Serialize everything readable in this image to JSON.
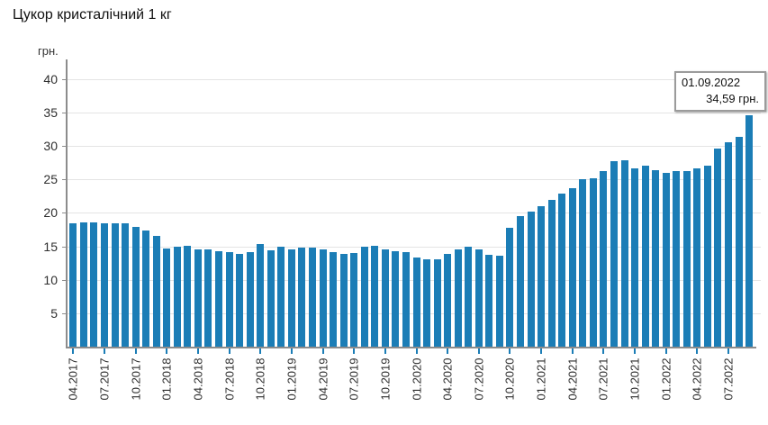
{
  "title": "Цукор кристалічний 1 кг",
  "y_axis_unit": "грн.",
  "tooltip": {
    "date": "01.09.2022",
    "value": "34,59 грн."
  },
  "chart_data": {
    "type": "bar",
    "title": "Цукор кристалічний 1 кг",
    "ylabel": "грн.",
    "xlabel": "",
    "grid": true,
    "legend_position": "none",
    "bar_color": "#1b7db6",
    "axis_color": "#8c8c8c",
    "grid_color": "#e4e4e4",
    "ylim": [
      0,
      42
    ],
    "yticks": [
      5,
      10,
      15,
      20,
      25,
      30,
      35,
      40
    ],
    "x_label_every": 3,
    "x": [
      "04.2017",
      "05.2017",
      "06.2017",
      "07.2017",
      "08.2017",
      "09.2017",
      "10.2017",
      "11.2017",
      "12.2017",
      "01.2018",
      "02.2018",
      "03.2018",
      "04.2018",
      "05.2018",
      "06.2018",
      "07.2018",
      "08.2018",
      "09.2018",
      "10.2018",
      "11.2018",
      "12.2018",
      "01.2019",
      "02.2019",
      "03.2019",
      "04.2019",
      "05.2019",
      "06.2019",
      "07.2019",
      "08.2019",
      "09.2019",
      "10.2019",
      "11.2019",
      "12.2019",
      "01.2020",
      "02.2020",
      "03.2020",
      "04.2020",
      "05.2020",
      "06.2020",
      "07.2020",
      "08.2020",
      "09.2020",
      "10.2020",
      "11.2020",
      "12.2020",
      "01.2021",
      "02.2021",
      "03.2021",
      "04.2021",
      "05.2021",
      "06.2021",
      "07.2021",
      "08.2021",
      "09.2021",
      "10.2021",
      "11.2021",
      "12.2021",
      "01.2022",
      "02.2022",
      "03.2022",
      "04.2022",
      "05.2022",
      "06.2022",
      "07.2022",
      "08.2022",
      "09.2022"
    ],
    "series": [
      {
        "name": "Цукор кристалічний 1 кг",
        "values": [
          18.4,
          18.6,
          18.6,
          18.5,
          18.5,
          18.4,
          17.9,
          17.3,
          16.5,
          14.7,
          14.9,
          15.1,
          14.6,
          14.5,
          14.3,
          14.1,
          13.8,
          14.2,
          15.3,
          14.4,
          14.9,
          14.5,
          14.8,
          14.8,
          14.5,
          14.2,
          13.9,
          14.0,
          14.9,
          15.1,
          14.6,
          14.3,
          14.2,
          13.3,
          13.0,
          13.1,
          13.8,
          14.6,
          14.9,
          14.5,
          13.7,
          13.6,
          17.8,
          19.5,
          20.2,
          21.0,
          21.9,
          22.9,
          23.7,
          25.0,
          25.1,
          26.2,
          27.7,
          27.8,
          26.6,
          27.1,
          26.4,
          26.0,
          26.2,
          26.2,
          26.6,
          27.1,
          29.6,
          30.6,
          31.4,
          34.59
        ]
      }
    ],
    "annotation": {
      "x": "09.2022",
      "label_date": "01.09.2022",
      "label_value": "34,59 грн."
    }
  }
}
